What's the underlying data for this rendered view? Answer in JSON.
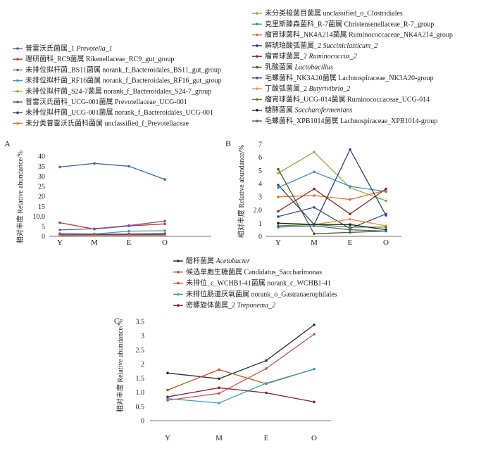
{
  "chart_data": [
    {
      "panel": "A",
      "type": "line",
      "categories": [
        "Y",
        "M",
        "E",
        "O"
      ],
      "ylabel": "相对丰度 Relative abundance/%",
      "ylim": [
        0,
        40
      ],
      "yticks": [
        0,
        5,
        10,
        15,
        20,
        25,
        30,
        35,
        40
      ],
      "series": [
        {
          "cn": "普雷沃氏菌属_1",
          "name": "Prevotella_1",
          "italic": true,
          "color": "#3b67b0",
          "values": [
            34.6,
            36.4,
            35.0,
            28.4
          ]
        },
        {
          "cn": "理研菌科_RC9菌属",
          "name": "Rikenellaceae_RC9_gut_group",
          "italic": false,
          "color": "#b83a3a",
          "values": [
            6.8,
            3.6,
            5.2,
            6.2
          ]
        },
        {
          "cn": "未排位拟杆菌_BS11菌属",
          "name": "norank_f_Bacteroidales_BS11_gut_group",
          "italic": false,
          "color": "#7a55a8",
          "values": [
            3.2,
            3.8,
            5.4,
            7.6
          ]
        },
        {
          "cn": "未排位拟杆菌_RF16菌属",
          "name": "norank_f_Bacteroidales_RF16_gut_group",
          "italic": false,
          "color": "#3aa0b0",
          "values": [
            1.4,
            1.2,
            2.6,
            2.8
          ]
        },
        {
          "cn": "未排位拟杆菌_S24-7菌属",
          "name": "norank_f_Bacteroidales_S24-7_group",
          "italic": false,
          "color": "#8ab040",
          "values": [
            0.8,
            0.6,
            1.0,
            1.2
          ]
        },
        {
          "cn": "普雷沃氏菌科_UCG-001菌属",
          "name": "Prevotellaceae_UCG-001",
          "italic": false,
          "color": "#6a3f98",
          "values": [
            1.0,
            1.0,
            1.2,
            1.4
          ]
        },
        {
          "cn": "未排位拟杆菌_UCG-001菌属",
          "name": "norank_f_Bacteroidales_UCG-001",
          "italic": false,
          "color": "#2e3f7a",
          "values": [
            0.5,
            0.6,
            0.7,
            0.9
          ]
        },
        {
          "cn": "未分类普雷沃氏菌科菌属",
          "name": "unclassified_f_Prevotellaceae",
          "italic": false,
          "color": "#e0762a",
          "values": [
            0.4,
            0.5,
            0.5,
            0.6
          ]
        }
      ]
    },
    {
      "panel": "B",
      "type": "line",
      "categories": [
        "Y",
        "M",
        "E",
        "O"
      ],
      "ylabel": "相对丰度 Relative abundance/%",
      "ylim": [
        0,
        7
      ],
      "yticks": [
        0,
        1,
        2,
        3,
        4,
        5,
        6,
        7
      ],
      "series": [
        {
          "cn": "未分类梭菌目菌属",
          "name": "unclassified_o_Clostridiales",
          "italic": false,
          "color": "#8ab040",
          "values": [
            4.8,
            6.4,
            3.7,
            2.7
          ]
        },
        {
          "cn": "克里斯滕森菌科_R-7菌属",
          "name": "Christensenellaceae_R-7_group",
          "italic": false,
          "color": "#3a90c8",
          "values": [
            3.7,
            4.9,
            3.8,
            3.4
          ]
        },
        {
          "cn": "瘤胃球菌科_NK4A214菌属",
          "name": "Ruminococcaceae_NK4A214_group",
          "italic": false,
          "color": "#e0762a",
          "values": [
            3.0,
            3.1,
            2.8,
            3.5
          ]
        },
        {
          "cn": "解琥珀酸弧菌属_2",
          "name": "Succiniclasticum_2",
          "italic": true,
          "color": "#2e3f7a",
          "values": [
            3.9,
            0.9,
            6.6,
            1.6
          ]
        },
        {
          "cn": "瘤胃球菌属_2",
          "name": "Ruminococcus_2",
          "italic": true,
          "color": "#8b2a2a",
          "values": [
            1.9,
            3.6,
            1.7,
            3.6
          ]
        },
        {
          "cn": "乳酸菌属",
          "name": "Lactobacillus",
          "italic": true,
          "color": "#4a5a20",
          "values": [
            5.1,
            0.2,
            0.3,
            0.4
          ]
        },
        {
          "cn": "毛螺菌科_NK3A20菌属",
          "name": "Lachnospiraceae_NK3A20-group",
          "italic": false,
          "color": "#3a4f88",
          "values": [
            1.5,
            2.2,
            0.6,
            1.7
          ]
        },
        {
          "cn": "丁酸弧菌属_2",
          "name": "Butyrivibrio_2",
          "italic": true,
          "color": "#f09040",
          "values": [
            1.0,
            0.9,
            1.3,
            0.8
          ]
        },
        {
          "cn": "瘤胃球菌科_UCG-014菌属",
          "name": "Ruminococcaceae_UCG-014",
          "italic": false,
          "color": "#4d8a30",
          "values": [
            0.8,
            0.9,
            0.7,
            0.7
          ]
        },
        {
          "cn": "糖酵菌属",
          "name": "Saccharofermentans",
          "italic": true,
          "color": "#222222",
          "values": [
            1.0,
            0.9,
            0.9,
            0.5
          ]
        },
        {
          "cn": "毛螺菌科_XPB1014菌属",
          "name": "Lachnospiraceae_XPB1014-group",
          "italic": false,
          "color": "#3a6a8a",
          "values": [
            0.7,
            0.8,
            0.5,
            0.4
          ]
        }
      ]
    },
    {
      "panel": "C",
      "type": "line",
      "categories": [
        "Y",
        "M",
        "E",
        "O"
      ],
      "ylabel": "相对丰度 Relative abundance/%",
      "ylim": [
        0,
        3.5
      ],
      "yticks": [
        0,
        0.5,
        1.0,
        1.5,
        2.0,
        2.5,
        3.0,
        3.5
      ],
      "series": [
        {
          "cn": "醋杆菌属",
          "name": "Acetobacter",
          "italic": true,
          "color": "#2a2a40",
          "values": [
            1.68,
            1.48,
            2.12,
            3.38
          ]
        },
        {
          "cn": "候选单胞生糖菌属",
          "name": "Candidatus_Saccharimonas",
          "italic": false,
          "color": "#c0581a",
          "values": [
            1.08,
            1.8,
            1.3,
            1.82
          ]
        },
        {
          "cn": "未排位_c_WCHB1-41菌属",
          "name": "norank_c_WCHB1-41",
          "italic": false,
          "color": "#d05050",
          "values": [
            0.72,
            0.96,
            1.84,
            3.05
          ]
        },
        {
          "cn": "未排位肠道厌氧菌属",
          "name": "norank_o_Gastranaerophilales",
          "italic": false,
          "color": "#3aa0c0",
          "values": [
            0.78,
            0.62,
            1.32,
            1.82
          ]
        },
        {
          "cn": "密螺旋体菌属_2",
          "name": "Treponema_2",
          "italic": true,
          "color": "#8b2030",
          "values": [
            0.84,
            1.16,
            0.98,
            0.66
          ]
        }
      ]
    }
  ]
}
